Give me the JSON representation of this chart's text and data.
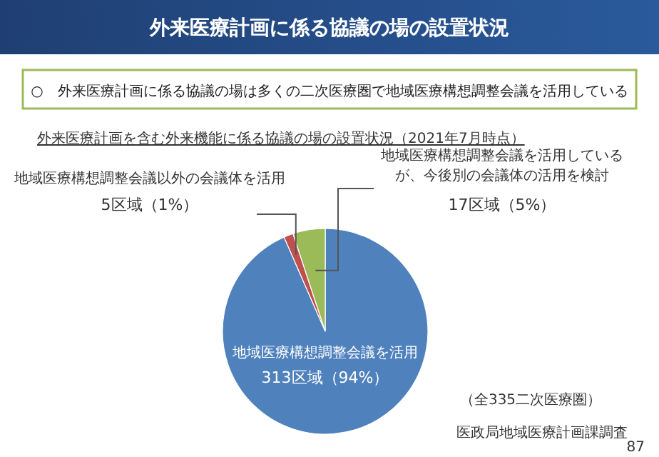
{
  "chart_data": {
    "type": "pie",
    "title": "外来医療計画に係る協議の場の設置状況",
    "subtitle": "○　外来医療計画に係る協議の場は多くの二次医療圏で地域医療構想調整会議を活用している",
    "categories": [
      "地域医療構想調整会議を活用",
      "地域医療構想調整会議以外の会議体を活用",
      "地域医療構想調整会議を活用しているが、今後別の会議体の活用を検討"
    ],
    "values": [
      313,
      5,
      17
    ],
    "colors": [
      "#4f81bd",
      "#c0504d",
      "#9bbb59"
    ],
    "value_labels": [
      "313区域（94%）",
      "5区域（1%）",
      "17区域（5%）"
    ],
    "annotations": [
      "外来医療計画を含む外来機能に係る協議の場の設置状況（2021年7月時点）",
      "（全335二次医療圏）",
      "医政局地域医療計画課調査",
      "87"
    ]
  }
}
